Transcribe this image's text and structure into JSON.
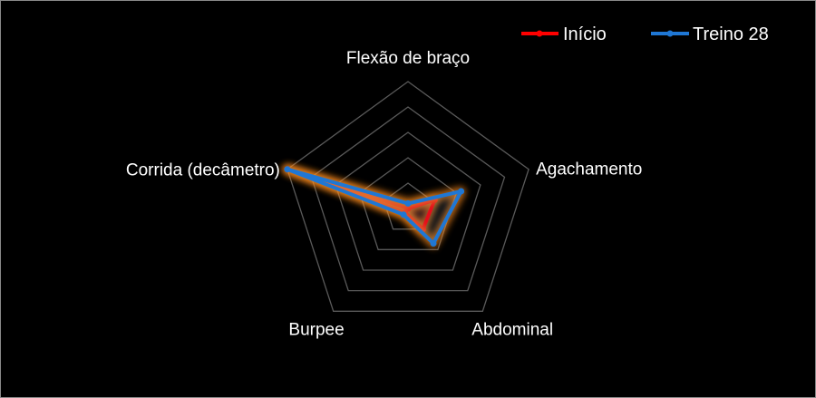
{
  "chart_data": {
    "type": "radar",
    "title": "",
    "axes": [
      "Flexão de braço",
      "Agachamento",
      "Abdominal",
      "Burpee",
      "Corrida (decâmetro)"
    ],
    "rmax": 50,
    "rings": 5,
    "series": [
      {
        "name": "Início",
        "color": "#ff0000",
        "values": [
          0,
          11,
          10,
          2,
          50
        ]
      },
      {
        "name": "Treino 28",
        "color": "#1f77d4",
        "values": [
          2,
          22,
          17,
          3,
          50
        ]
      }
    ],
    "glow_color": "#ff8c1a",
    "grid_color": "#5a5a5a",
    "legend_position": "top-right"
  }
}
